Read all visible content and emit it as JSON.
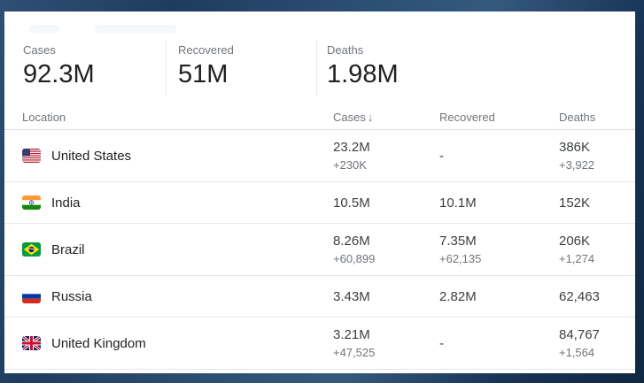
{
  "stats": [
    {
      "label": "Cases",
      "value": "92.3M"
    },
    {
      "label": "Recovered",
      "value": "51M"
    },
    {
      "label": "Deaths",
      "value": "1.98M"
    }
  ],
  "table": {
    "headers": {
      "location": "Location",
      "cases": "Cases",
      "recovered": "Recovered",
      "deaths": "Deaths"
    },
    "sort": {
      "column": "cases",
      "direction": "descending",
      "icon": "↓"
    },
    "rows": [
      {
        "flag": "us-flag-icon",
        "location": "United States",
        "cases": "23.2M",
        "cases_delta": "+230K",
        "recovered": "-",
        "recovered_delta": "",
        "deaths": "386K",
        "deaths_delta": "+3,922"
      },
      {
        "flag": "india-flag-icon",
        "location": "India",
        "cases": "10.5M",
        "cases_delta": "",
        "recovered": "10.1M",
        "recovered_delta": "",
        "deaths": "152K",
        "deaths_delta": ""
      },
      {
        "flag": "brazil-flag-icon",
        "location": "Brazil",
        "cases": "8.26M",
        "cases_delta": "+60,899",
        "recovered": "7.35M",
        "recovered_delta": "+62,135",
        "deaths": "206K",
        "deaths_delta": "+1,274"
      },
      {
        "flag": "russia-flag-icon",
        "location": "Russia",
        "cases": "3.43M",
        "cases_delta": "",
        "recovered": "2.82M",
        "recovered_delta": "",
        "deaths": "62,463",
        "deaths_delta": ""
      },
      {
        "flag": "uk-flag-icon",
        "location": "United Kingdom",
        "cases": "3.21M",
        "cases_delta": "+47,525",
        "recovered": "-",
        "recovered_delta": "",
        "deaths": "84,767",
        "deaths_delta": "+1,564"
      }
    ]
  },
  "colors": {
    "frame_blue": "#24466b",
    "panel_bg": "#ffffff",
    "text_primary": "#202124",
    "text_secondary": "#70757a",
    "row_divider": "#e4e7ea",
    "header_divider": "#d9dcdf"
  }
}
